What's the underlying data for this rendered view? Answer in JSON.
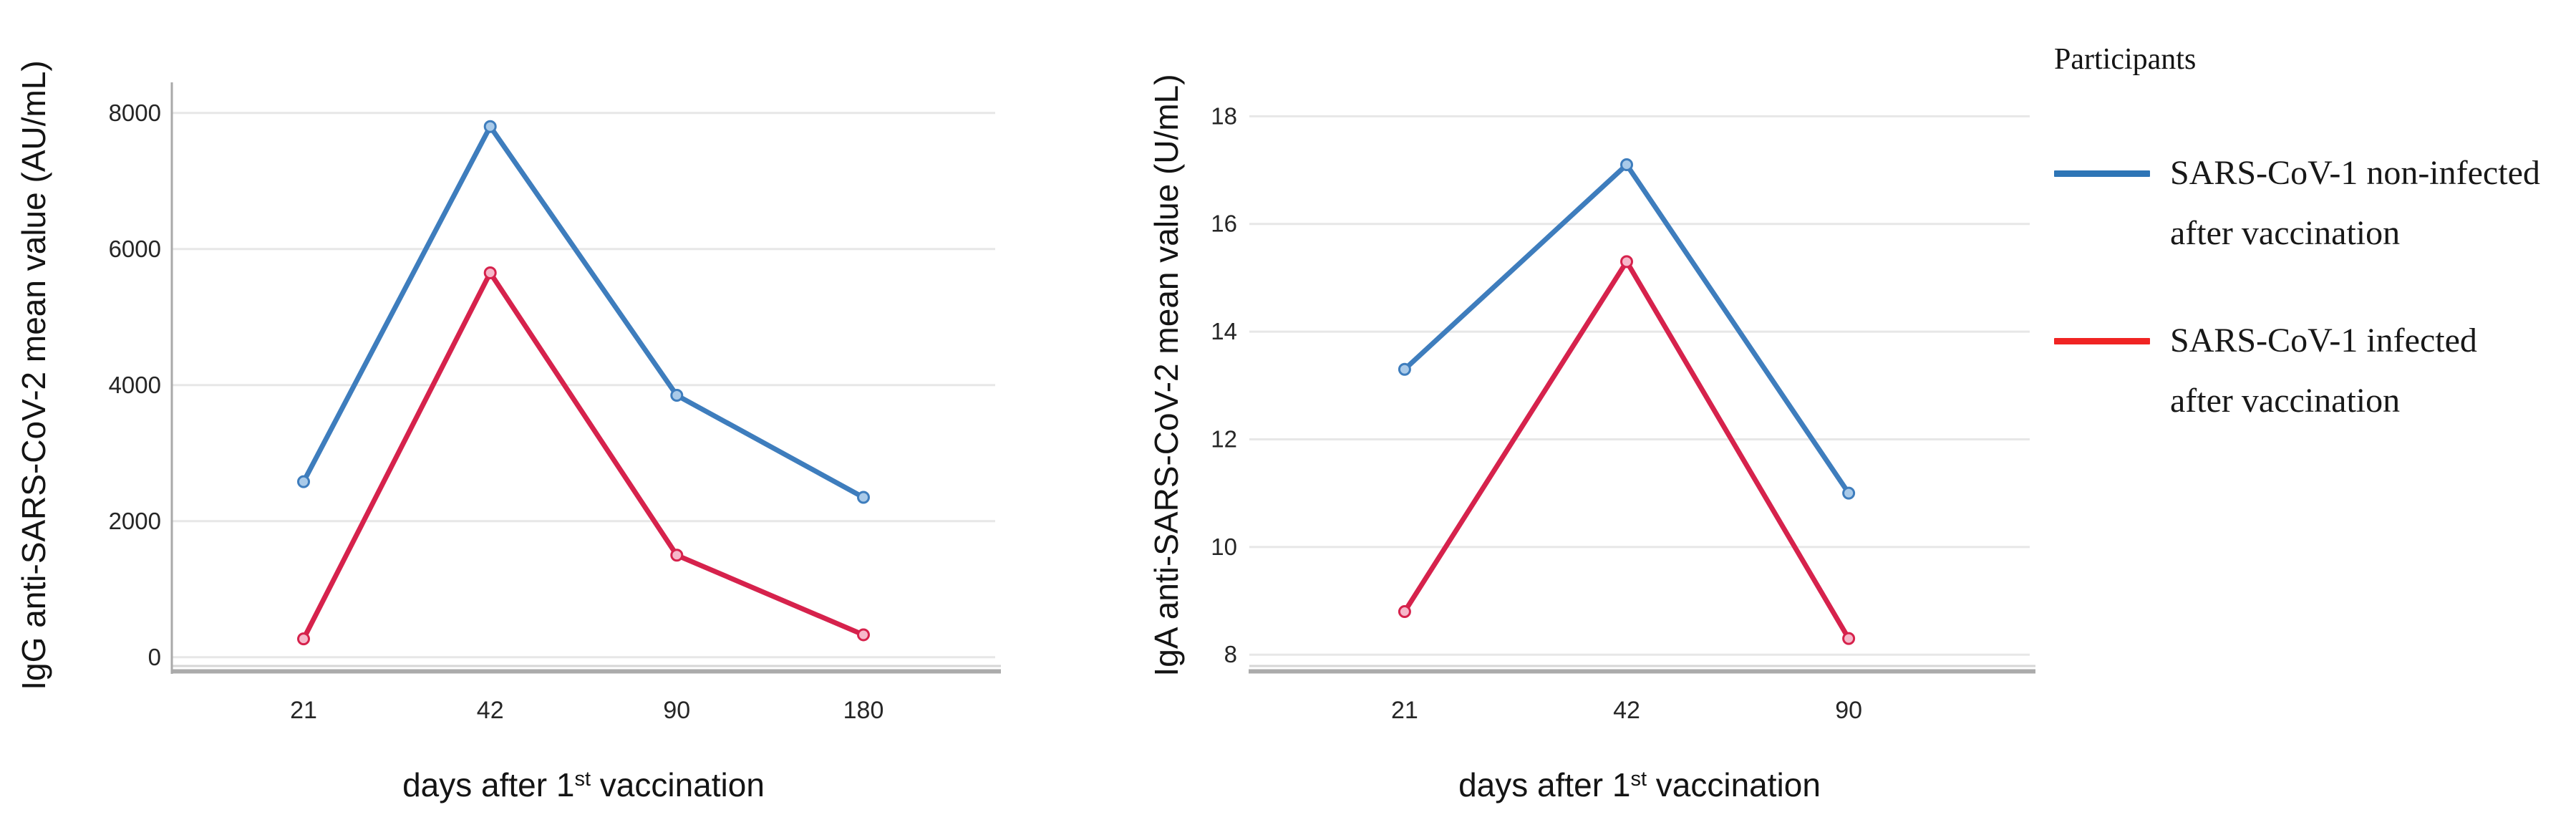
{
  "legend": {
    "title": "Participants",
    "items": [
      {
        "id": "non-infected",
        "label_line1": "SARS-CoV-1 non-infected",
        "label_line2": "after vaccination",
        "color": "#2e75b6"
      },
      {
        "id": "infected",
        "label_line1": "SARS-CoV-1 infected",
        "label_line2": "after vaccination",
        "color": "#f02423"
      }
    ]
  },
  "chart_data": [
    {
      "id": "igg",
      "type": "line",
      "title": "",
      "ylabel": "IgG anti-SARS-CoV-2 mean value (AU/mL)",
      "xlabel": "days after 1st vaccination",
      "xlabel_parts": {
        "pre": "days after 1",
        "sup": "st",
        "post": " vaccination"
      },
      "categories": [
        "21",
        "42",
        "90",
        "180"
      ],
      "yticks": [
        0,
        2000,
        4000,
        6000,
        8000
      ],
      "ytick_labels": [
        "0",
        "2000",
        "4000",
        "6000",
        "8000"
      ],
      "ylim": [
        -160,
        8450
      ],
      "grid": true,
      "legend_position": "external-right",
      "series": [
        {
          "id": "non-infected",
          "name": "SARS-CoV-1 non-infected after vaccination",
          "color": "#3e7dbd",
          "marker_fill": "#a9cae9",
          "values": [
            2580,
            7800,
            3850,
            2350
          ]
        },
        {
          "id": "infected",
          "name": "SARS-CoV-1 infected after vaccination",
          "color": "#d6224c",
          "marker_fill": "#f6b8ca",
          "values": [
            270,
            5650,
            1500,
            330
          ]
        }
      ]
    },
    {
      "id": "iga",
      "type": "line",
      "title": "",
      "ylabel": "IgA anti-SARS-CoV-2 mean value (U/mL)",
      "xlabel": "days after 1st vaccination",
      "xlabel_parts": {
        "pre": "days after 1",
        "sup": "st",
        "post": " vaccination"
      },
      "categories": [
        "21",
        "42",
        "90"
      ],
      "yticks": [
        8,
        10,
        12,
        14,
        16,
        18
      ],
      "ytick_labels": [
        "8",
        "10",
        "12",
        "14",
        "16",
        "18"
      ],
      "ylim": [
        7.75,
        18.63
      ],
      "grid": true,
      "legend_position": "external-right",
      "series": [
        {
          "id": "non-infected",
          "name": "SARS-CoV-1 non-infected after vaccination",
          "color": "#3e7dbd",
          "marker_fill": "#a9cae9",
          "values": [
            13.3,
            17.1,
            11.0
          ]
        },
        {
          "id": "infected",
          "name": "SARS-CoV-1 infected after vaccination",
          "color": "#d6224c",
          "marker_fill": "#f6b8ca",
          "values": [
            8.8,
            15.3,
            8.3
          ]
        }
      ]
    }
  ]
}
